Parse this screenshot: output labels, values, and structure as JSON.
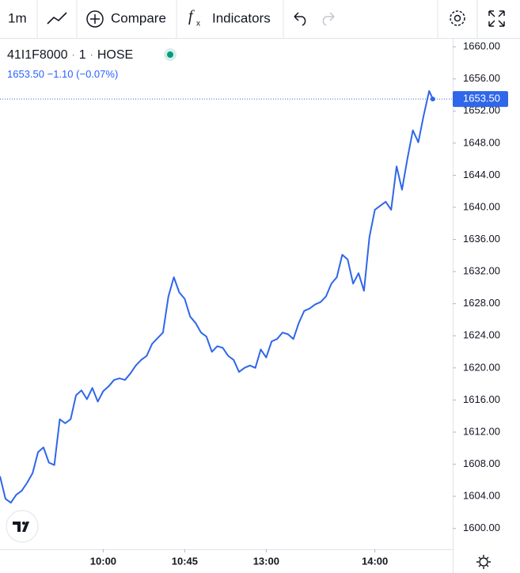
{
  "toolbar": {
    "interval": "1m",
    "compare": "Compare",
    "indicators": "Indicators"
  },
  "header": {
    "symbol": "41I1F8000",
    "resolution": "1",
    "exchange": "HOSE",
    "price": "1653.50",
    "change": "−1.10",
    "change_pct": "(−0.07%)"
  },
  "chart_data": {
    "type": "line",
    "x": [
      0,
      3,
      6,
      9,
      12,
      15,
      18,
      21,
      24,
      27,
      30,
      33,
      36,
      39,
      42,
      45,
      48,
      51,
      54,
      57,
      60,
      63,
      66,
      69,
      72,
      75,
      78,
      81,
      84,
      87,
      90,
      93,
      96,
      99,
      102,
      105,
      108,
      111,
      114,
      117,
      120,
      123,
      126,
      129,
      132,
      135,
      138,
      141,
      144,
      147,
      150,
      153,
      156,
      159,
      162,
      165,
      168,
      171,
      174,
      177,
      180,
      183,
      186,
      189,
      192,
      195,
      198,
      201,
      204,
      207,
      210,
      213,
      216,
      219,
      222,
      225,
      228,
      231,
      234,
      237,
      239
    ],
    "series": [
      {
        "name": "41I1F8000",
        "color": "#2f66ea",
        "values": [
          1606.5,
          1603.7,
          1603.2,
          1604.2,
          1604.7,
          1605.7,
          1606.9,
          1609.5,
          1610.1,
          1608.2,
          1607.9,
          1613.6,
          1613.1,
          1613.6,
          1616.6,
          1617.2,
          1616.1,
          1617.5,
          1615.8,
          1617.1,
          1617.7,
          1618.5,
          1618.7,
          1618.5,
          1619.3,
          1620.3,
          1621.0,
          1621.5,
          1623.0,
          1623.7,
          1624.4,
          1628.9,
          1631.3,
          1629.4,
          1628.6,
          1626.4,
          1625.6,
          1624.4,
          1623.9,
          1622.0,
          1622.7,
          1622.5,
          1621.5,
          1621.0,
          1619.5,
          1620.0,
          1620.3,
          1620.0,
          1622.3,
          1621.3,
          1623.3,
          1623.6,
          1624.4,
          1624.2,
          1623.6,
          1625.6,
          1627.1,
          1627.4,
          1627.9,
          1628.2,
          1628.9,
          1630.5,
          1631.3,
          1634.1,
          1633.5,
          1630.5,
          1631.8,
          1629.6,
          1636.3,
          1639.7,
          1640.2,
          1640.7,
          1639.7,
          1645.1,
          1642.2,
          1646.1,
          1649.6,
          1648.1,
          1651.5,
          1654.5,
          1653.5
        ]
      }
    ],
    "last_label": "1653.50",
    "xlim": [
      0,
      250
    ],
    "xticks": [
      {
        "value": 57,
        "label": "10:00"
      },
      {
        "value": 102,
        "label": "10:45"
      },
      {
        "value": 147,
        "label": "13:00"
      },
      {
        "value": 207,
        "label": "14:00"
      }
    ],
    "ylim": [
      1597.8,
      1661.1
    ],
    "yticks": [
      {
        "value": 1600,
        "label": "1600.00"
      },
      {
        "value": 1604,
        "label": "1604.00"
      },
      {
        "value": 1608,
        "label": "1608.00"
      },
      {
        "value": 1612,
        "label": "1612.00"
      },
      {
        "value": 1616,
        "label": "1616.00"
      },
      {
        "value": 1620,
        "label": "1620.00"
      },
      {
        "value": 1624,
        "label": "1624.00"
      },
      {
        "value": 1628,
        "label": "1628.00"
      },
      {
        "value": 1632,
        "label": "1632.00"
      },
      {
        "value": 1636,
        "label": "1636.00"
      },
      {
        "value": 1640,
        "label": "1640.00"
      },
      {
        "value": 1644,
        "label": "1644.00"
      },
      {
        "value": 1648,
        "label": "1648.00"
      },
      {
        "value": 1652,
        "label": "1652.00"
      },
      {
        "value": 1656,
        "label": "1656.00"
      },
      {
        "value": 1660,
        "label": "1660.00"
      }
    ],
    "grid": true
  }
}
